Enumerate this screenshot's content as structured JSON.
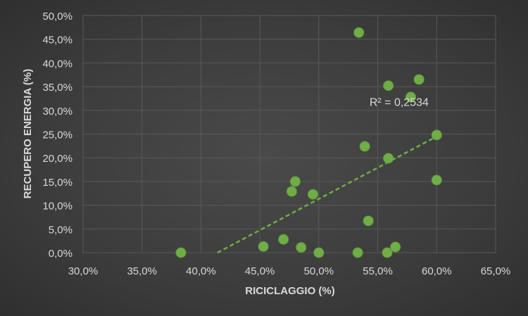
{
  "chart_data": {
    "type": "scatter",
    "title": "",
    "xlabel": "RICICLAGGIO (%)",
    "ylabel": "RECUPERO ENERGIA (%)",
    "xlim": [
      30,
      65
    ],
    "ylim": [
      0,
      50
    ],
    "x_ticks": [
      30,
      35,
      40,
      45,
      50,
      55,
      60,
      65
    ],
    "y_ticks": [
      0,
      5,
      10,
      15,
      20,
      25,
      30,
      35,
      40,
      45,
      50
    ],
    "x_tick_labels": [
      "30,0%",
      "35,0%",
      "40,0%",
      "45,0%",
      "50,0%",
      "55,0%",
      "60,0%",
      "65,0%"
    ],
    "y_tick_labels": [
      "0,0%",
      "5,0%",
      "10,0%",
      "15,0%",
      "20,0%",
      "25,0%",
      "30,0%",
      "35,0%",
      "40,0%",
      "45,0%",
      "50,0%"
    ],
    "grid": true,
    "series": [
      {
        "points": [
          {
            "x": 38.3,
            "y": 0.0
          },
          {
            "x": 45.3,
            "y": 1.3
          },
          {
            "x": 47.0,
            "y": 2.8
          },
          {
            "x": 47.7,
            "y": 12.9
          },
          {
            "x": 48.0,
            "y": 15.0
          },
          {
            "x": 48.5,
            "y": 1.1
          },
          {
            "x": 49.5,
            "y": 12.3
          },
          {
            "x": 50.0,
            "y": 0.0
          },
          {
            "x": 53.3,
            "y": 0.0
          },
          {
            "x": 53.4,
            "y": 46.4
          },
          {
            "x": 53.9,
            "y": 22.4
          },
          {
            "x": 54.2,
            "y": 6.7
          },
          {
            "x": 55.8,
            "y": 0.0
          },
          {
            "x": 55.9,
            "y": 35.2
          },
          {
            "x": 55.9,
            "y": 19.9
          },
          {
            "x": 56.5,
            "y": 1.2
          },
          {
            "x": 57.8,
            "y": 32.8
          },
          {
            "x": 58.5,
            "y": 36.5
          },
          {
            "x": 60.0,
            "y": 24.8
          },
          {
            "x": 60.0,
            "y": 15.3
          }
        ]
      }
    ],
    "trendline": {
      "type": "linear",
      "from": {
        "x": 41.4,
        "y": 0.0
      },
      "to": {
        "x": 60.0,
        "y": 24.5
      },
      "r2_label": "R² = 0,2534",
      "label_at": {
        "x": 54.3,
        "y": 30.9
      }
    },
    "colors": {
      "marker": "#70ad47",
      "marker_edge": "#5e9a3a",
      "trendline": "#70ad47",
      "grid": "#595959",
      "axis_text": "#d9d9d9"
    }
  }
}
